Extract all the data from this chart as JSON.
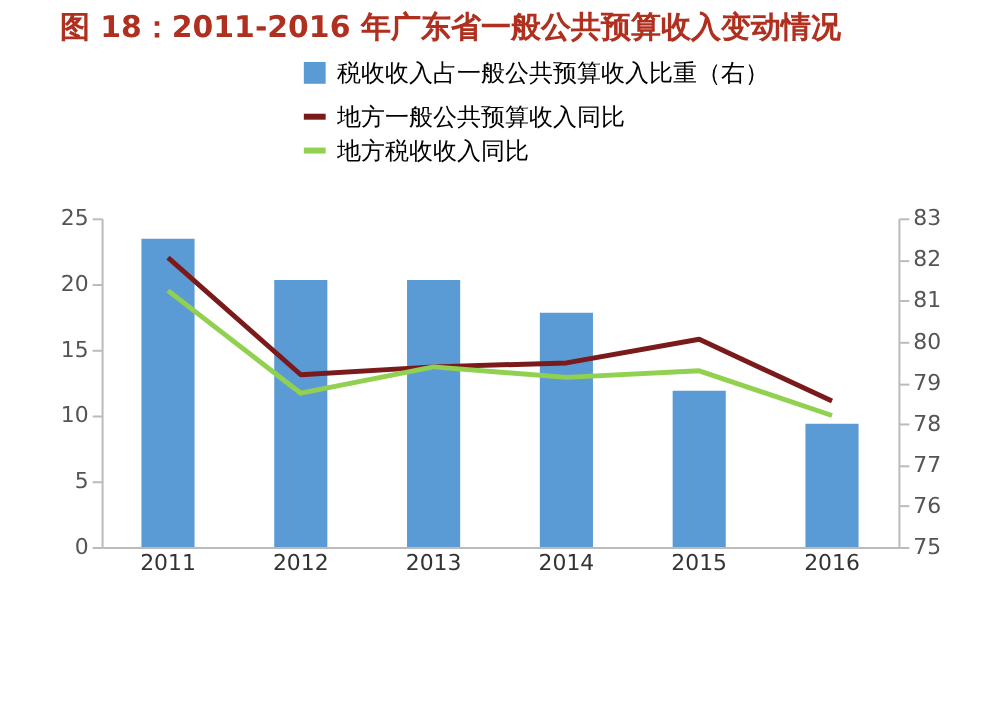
{
  "chart_data": {
    "type": "bar",
    "title": "图 18：2011-2016 年广东省一般公共预算收入变动情况",
    "categories": [
      "2011",
      "2012",
      "2013",
      "2014",
      "2015",
      "2016"
    ],
    "series": [
      {
        "name": "税收收入占一般公共预算收入比重（右）",
        "axis": "y2",
        "color": "#5b9bd5",
        "values": [
          82.5,
          81.5,
          81.5,
          80.7,
          78.8,
          78.0
        ]
      },
      {
        "name": "地方一般公共预算收入同比",
        "type": "line",
        "color": "#7b1a1a",
        "values": [
          22.0,
          13.1,
          13.7,
          14.0,
          15.8,
          11.1
        ]
      },
      {
        "name": "地方税收收入同比",
        "type": "line",
        "color": "#92d050",
        "values": [
          19.5,
          11.7,
          13.7,
          12.9,
          13.4,
          10.0
        ]
      }
    ],
    "ylim": [
      0,
      25
    ],
    "yticks": [
      0,
      5,
      10,
      15,
      20,
      25
    ],
    "y2lim": [
      75,
      83
    ],
    "y2ticks": [
      75,
      76,
      77,
      78,
      79,
      80,
      81,
      82,
      83
    ],
    "legend": "top",
    "grid": false
  }
}
